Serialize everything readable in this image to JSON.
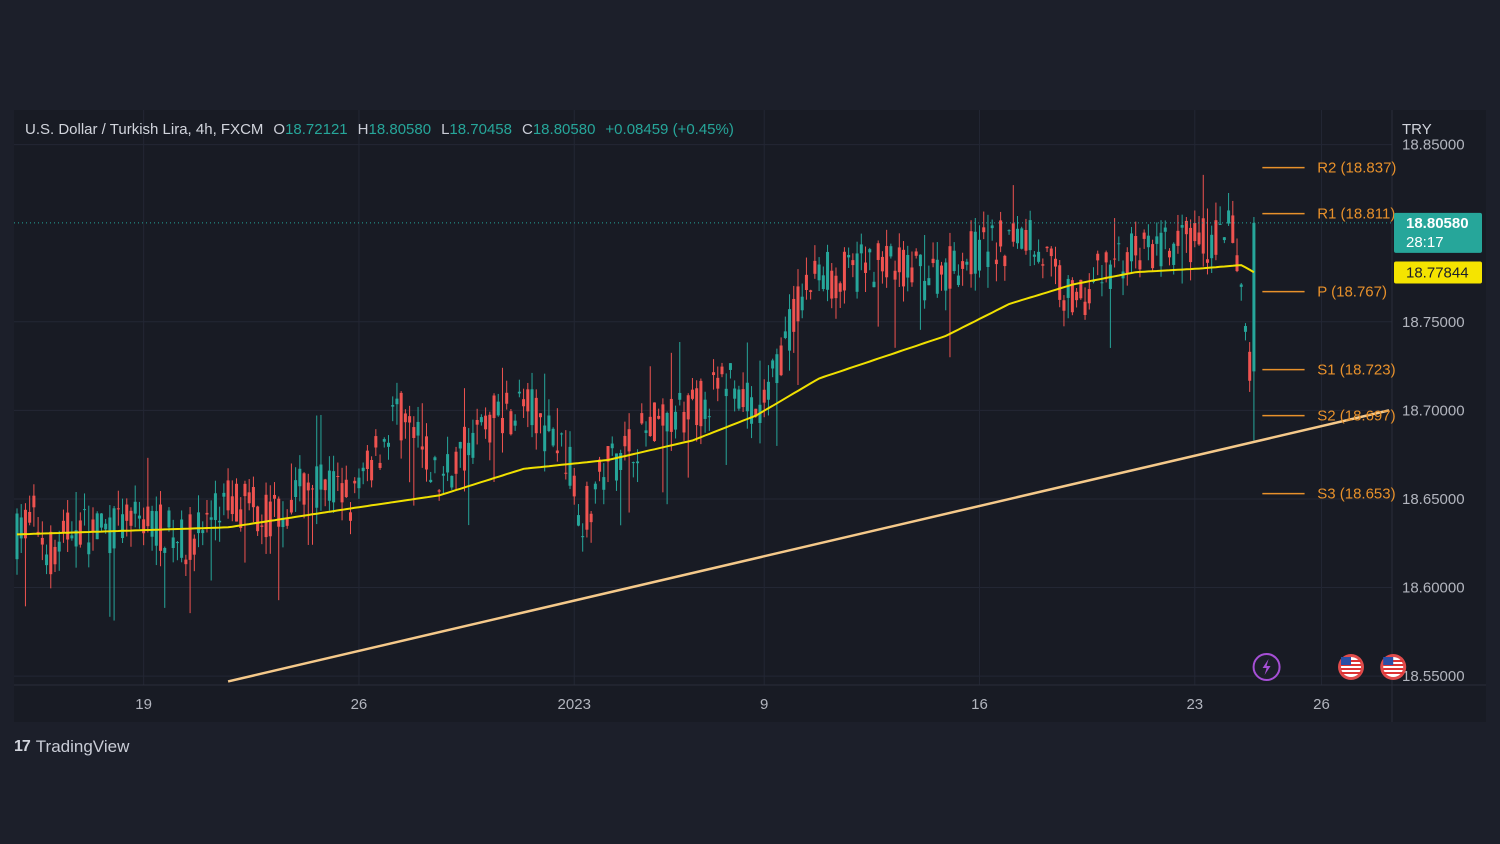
{
  "header": {
    "symbol": "U.S. Dollar / Turkish Lira, 4h, FXCM",
    "open_label": "O",
    "open": "18.72121",
    "high_label": "H",
    "high": "18.80580",
    "low_label": "L",
    "low": "18.70458",
    "close_label": "C",
    "close": "18.80580",
    "change": "+0.08459 (+0.45%)"
  },
  "brand": {
    "logo": "17",
    "name": "TradingView"
  },
  "colors": {
    "up": "#26a69a",
    "down": "#ef5350",
    "ma": "#f0e000",
    "trend": "#f5c98a",
    "pivot": "#e8912b",
    "price_tag": "#26a69a",
    "ma_tag": "#f5e400"
  },
  "chart_data": {
    "type": "candlestick",
    "currency": "TRY",
    "ylim": [
      18.545,
      18.865
    ],
    "y_ticks": [
      "18.85000",
      "18.75000",
      "18.70000",
      "18.65000",
      "18.60000",
      "18.55000"
    ],
    "y_tick_values": [
      18.85,
      18.75,
      18.7,
      18.65,
      18.6,
      18.55
    ],
    "x_ticks": [
      "19",
      "26",
      "2023",
      "9",
      "16",
      "23",
      "26"
    ],
    "x_tick_index": [
      30,
      81,
      132,
      177,
      228,
      279,
      309
    ],
    "n_candles": 326,
    "last_price": "18.80580",
    "countdown": "28:17",
    "ma_value": "18.77844",
    "anchors": [
      [
        0,
        18.63
      ],
      [
        4,
        18.64
      ],
      [
        8,
        18.62
      ],
      [
        14,
        18.635
      ],
      [
        20,
        18.63
      ],
      [
        30,
        18.64
      ],
      [
        40,
        18.625
      ],
      [
        50,
        18.65
      ],
      [
        60,
        18.64
      ],
      [
        70,
        18.66
      ],
      [
        80,
        18.65
      ],
      [
        90,
        18.7
      ],
      [
        100,
        18.66
      ],
      [
        110,
        18.69
      ],
      [
        120,
        18.705
      ],
      [
        130,
        18.675
      ],
      [
        134,
        18.64
      ],
      [
        140,
        18.67
      ],
      [
        150,
        18.69
      ],
      [
        160,
        18.7
      ],
      [
        170,
        18.72
      ],
      [
        175,
        18.69
      ],
      [
        185,
        18.76
      ],
      [
        190,
        18.78
      ],
      [
        195,
        18.775
      ],
      [
        205,
        18.785
      ],
      [
        215,
        18.775
      ],
      [
        228,
        18.79
      ],
      [
        240,
        18.8
      ],
      [
        250,
        18.76
      ],
      [
        260,
        18.785
      ],
      [
        270,
        18.79
      ],
      [
        280,
        18.795
      ],
      [
        288,
        18.8
      ],
      [
        292,
        18.72
      ],
      [
        293,
        18.8058
      ]
    ],
    "ma_line": [
      [
        0,
        18.63
      ],
      [
        50,
        18.634
      ],
      [
        80,
        18.645
      ],
      [
        100,
        18.652
      ],
      [
        120,
        18.667
      ],
      [
        140,
        18.672
      ],
      [
        160,
        18.683
      ],
      [
        175,
        18.697
      ],
      [
        190,
        18.718
      ],
      [
        205,
        18.73
      ],
      [
        220,
        18.742
      ],
      [
        235,
        18.76
      ],
      [
        250,
        18.771
      ],
      [
        265,
        18.778
      ],
      [
        280,
        18.78
      ],
      [
        290,
        18.782
      ],
      [
        293,
        18.778
      ]
    ],
    "trend_line": {
      "from": [
        50,
        18.547
      ],
      "to": [
        325,
        18.7
      ]
    },
    "pivots": [
      {
        "label": "R2 (18.837)",
        "value": 18.837
      },
      {
        "label": "R1 (18.811)",
        "value": 18.811
      },
      {
        "label": "P (18.767)",
        "value": 18.767
      },
      {
        "label": "S1 (18.723)",
        "value": 18.723
      },
      {
        "label": "S2 (18.697)",
        "value": 18.697
      },
      {
        "label": "S3 (18.653)",
        "value": 18.653
      }
    ],
    "events": [
      {
        "name": "lightning-event-icon",
        "index": 296
      },
      {
        "name": "us-flag-event-icon",
        "index": 316
      },
      {
        "name": "us-flag-event-icon",
        "index": 326
      }
    ]
  }
}
